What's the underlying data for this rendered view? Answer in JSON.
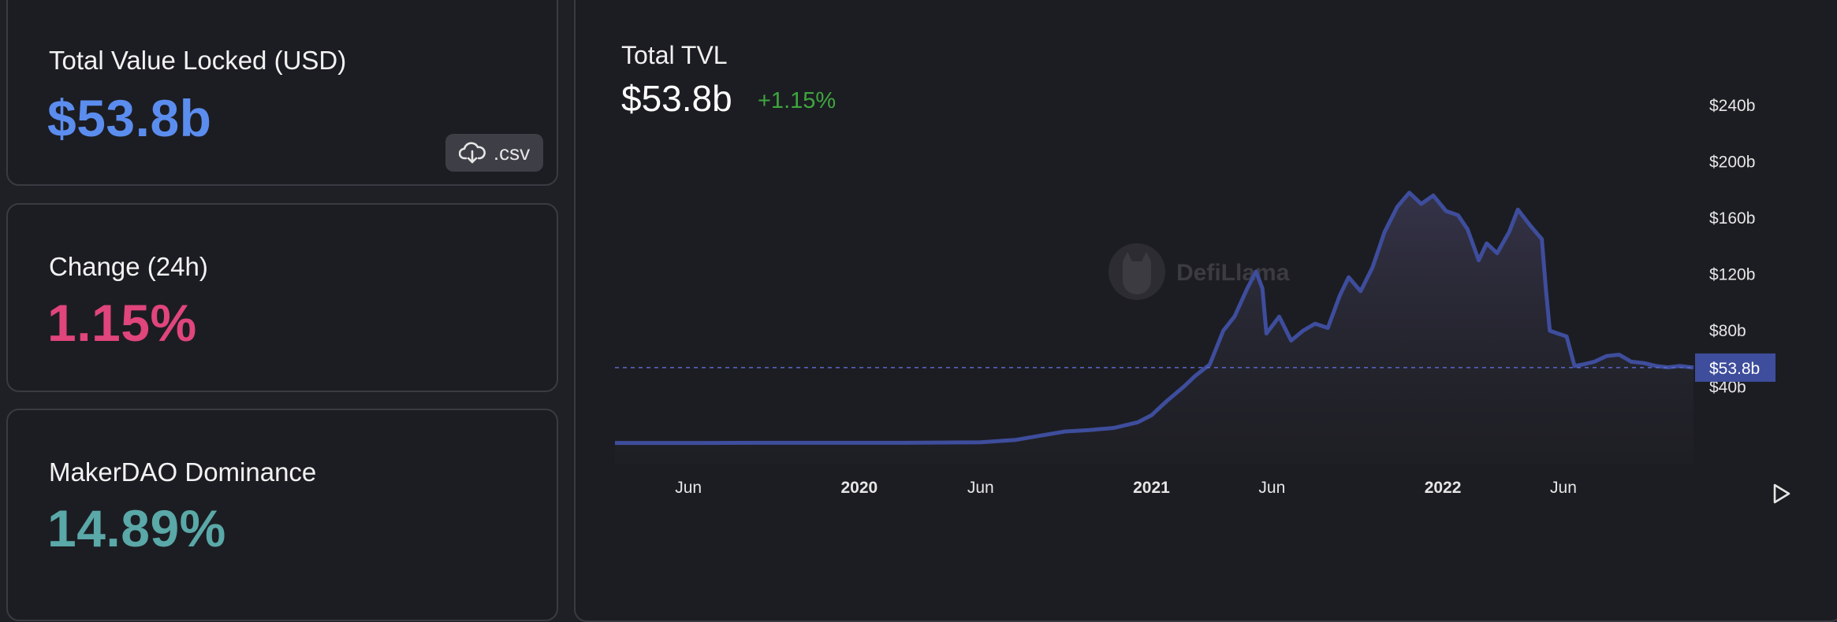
{
  "stats": {
    "tvl": {
      "label": "Total Value Locked (USD)",
      "value": "$53.8b",
      "color": "#5b8def"
    },
    "change": {
      "label": "Change (24h)",
      "value": "1.15%",
      "color": "#e0457b"
    },
    "dominance": {
      "label": "MakerDAO Dominance",
      "value": "14.89%",
      "color": "#5aa8a8"
    },
    "csv_button": {
      "label": ".csv",
      "icon": "cloud-download-icon"
    }
  },
  "chart": {
    "title": "Total TVL",
    "value": "$53.8b",
    "change": "+1.15%",
    "current_label": "$53.8b",
    "watermark": "DefiLlama",
    "play_icon": "play-icon"
  },
  "chart_data": {
    "type": "area",
    "title": "Total TVL",
    "xlabel": "",
    "ylabel": "",
    "x_tick_labels": [
      "Jun",
      "2020",
      "Jun",
      "2021",
      "Jun",
      "2022",
      "Jun"
    ],
    "x_tick_dates": [
      "2019-06-01",
      "2020-01-01",
      "2020-06-01",
      "2021-01-01",
      "2021-06-01",
      "2022-01-01",
      "2022-06-01"
    ],
    "y_tick_labels": [
      "$40b",
      "$80b",
      "$120b",
      "$160b",
      "$200b",
      "$240b"
    ],
    "y_tick_values": [
      40,
      80,
      120,
      160,
      200,
      240
    ],
    "ylim": [
      -15,
      260
    ],
    "xlim": [
      "2019-03-01",
      "2022-11-11"
    ],
    "current_value": 53.8,
    "series_color": "#3e4d9c",
    "grid": false,
    "series": [
      {
        "values": [
          [
            "2019-03-01",
            0.3
          ],
          [
            "2019-06-01",
            0.3
          ],
          [
            "2019-09-01",
            0.4
          ],
          [
            "2019-12-01",
            0.4
          ],
          [
            "2020-03-01",
            0.4
          ],
          [
            "2020-06-01",
            0.8
          ],
          [
            "2020-07-15",
            2.5
          ],
          [
            "2020-08-15",
            5.5
          ],
          [
            "2020-09-15",
            8.5
          ],
          [
            "2020-10-15",
            9.5
          ],
          [
            "2020-11-15",
            11.0
          ],
          [
            "2020-12-15",
            15.0
          ],
          [
            "2021-01-01",
            20.0
          ],
          [
            "2021-01-20",
            30.0
          ],
          [
            "2021-02-10",
            40.0
          ],
          [
            "2021-02-25",
            48.0
          ],
          [
            "2021-03-15",
            56.0
          ],
          [
            "2021-04-01",
            80.0
          ],
          [
            "2021-04-15",
            90.0
          ],
          [
            "2021-05-01",
            110.0
          ],
          [
            "2021-05-12",
            122.0
          ],
          [
            "2021-05-20",
            110.0
          ],
          [
            "2021-05-25",
            78.0
          ],
          [
            "2021-06-10",
            90.0
          ],
          [
            "2021-06-25",
            73.0
          ],
          [
            "2021-07-10",
            80.0
          ],
          [
            "2021-07-25",
            85.0
          ],
          [
            "2021-08-10",
            82.0
          ],
          [
            "2021-08-25",
            105.0
          ],
          [
            "2021-09-05",
            118.0
          ],
          [
            "2021-09-20",
            108.0
          ],
          [
            "2021-10-05",
            125.0
          ],
          [
            "2021-10-20",
            150.0
          ],
          [
            "2021-11-05",
            168.0
          ],
          [
            "2021-11-20",
            178.0
          ],
          [
            "2021-12-05",
            170.0
          ],
          [
            "2021-12-20",
            176.0
          ],
          [
            "2022-01-05",
            165.0
          ],
          [
            "2022-01-20",
            162.0
          ],
          [
            "2022-02-01",
            152.0
          ],
          [
            "2022-02-15",
            130.0
          ],
          [
            "2022-02-25",
            142.0
          ],
          [
            "2022-03-10",
            135.0
          ],
          [
            "2022-03-25",
            150.0
          ],
          [
            "2022-04-05",
            166.0
          ],
          [
            "2022-04-20",
            155.0
          ],
          [
            "2022-05-05",
            145.0
          ],
          [
            "2022-05-10",
            110.0
          ],
          [
            "2022-05-15",
            80.0
          ],
          [
            "2022-05-25",
            78.0
          ],
          [
            "2022-06-05",
            76.0
          ],
          [
            "2022-06-15",
            55.0
          ],
          [
            "2022-06-25",
            56.0
          ],
          [
            "2022-07-10",
            58.0
          ],
          [
            "2022-07-25",
            62.0
          ],
          [
            "2022-08-10",
            63.0
          ],
          [
            "2022-08-25",
            58.0
          ],
          [
            "2022-09-10",
            57.0
          ],
          [
            "2022-09-25",
            55.0
          ],
          [
            "2022-10-10",
            54.0
          ],
          [
            "2022-10-25",
            55.0
          ],
          [
            "2022-11-11",
            53.8
          ]
        ]
      }
    ]
  }
}
